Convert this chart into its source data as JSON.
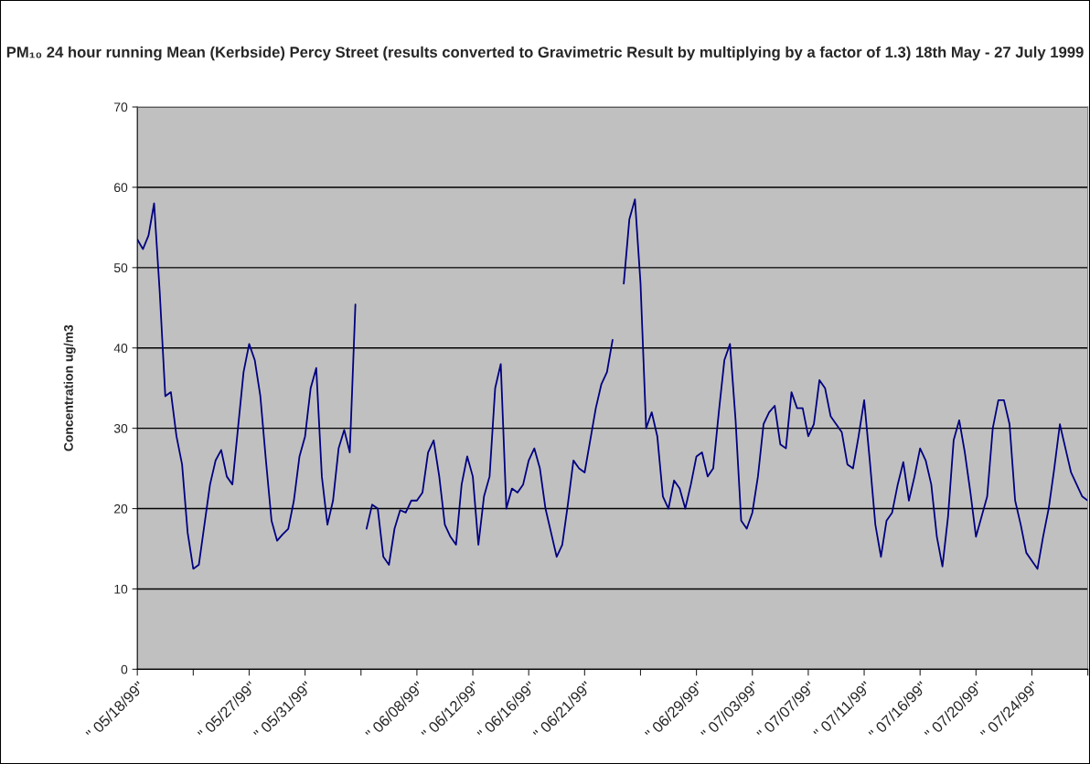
{
  "chart_data": {
    "type": "line",
    "title": "PM₁₀ 24 hour running Mean (Kerbside) Percy Street (results converted to Gravimetric Result by multiplying by a factor of 1.3) 18th May - 27 July 1999",
    "ylabel": "Concentration ug/m3",
    "categories": [
      "\" 05/18/99\"",
      null,
      null,
      null,
      null,
      null,
      null,
      null,
      null,
      null,
      null,
      null,
      null,
      null,
      null,
      null,
      null,
      null,
      null,
      null,
      "\" 05/27/99\"",
      null,
      null,
      null,
      null,
      null,
      null,
      null,
      null,
      null,
      "\" 05/31/99\"",
      null,
      null,
      null,
      null,
      null,
      null,
      null,
      null,
      null,
      null,
      null,
      null,
      null,
      null,
      null,
      null,
      null,
      null,
      null,
      "\" 06/08/99\"",
      null,
      null,
      null,
      null,
      null,
      null,
      null,
      null,
      null,
      "\" 06/12/99\"",
      null,
      null,
      null,
      null,
      null,
      null,
      null,
      null,
      null,
      "\" 06/16/99\"",
      null,
      null,
      null,
      null,
      null,
      null,
      null,
      null,
      null,
      "\" 06/21/99\"",
      null,
      null,
      null,
      null,
      null,
      null,
      null,
      null,
      null,
      null,
      null,
      null,
      null,
      null,
      null,
      null,
      null,
      null,
      null,
      "\" 06/29/99\"",
      null,
      null,
      null,
      null,
      null,
      null,
      null,
      null,
      null,
      "\" 07/03/99\"",
      null,
      null,
      null,
      null,
      null,
      null,
      null,
      null,
      null,
      "\" 07/07/99\"",
      null,
      null,
      null,
      null,
      null,
      null,
      null,
      null,
      null,
      "\" 07/11/99\"",
      null,
      null,
      null,
      null,
      null,
      null,
      null,
      null,
      null,
      "\" 07/16/99\"",
      null,
      null,
      null,
      null,
      null,
      null,
      null,
      null,
      null,
      "\" 07/20/99\"",
      null,
      null,
      null,
      null,
      null,
      null,
      null,
      null,
      null,
      "\" 07/24/99\"",
      null,
      null,
      null,
      null,
      null,
      null,
      null,
      null,
      null,
      null
    ],
    "series": [
      {
        "color": "#000080",
        "values": [
          53.5,
          52.3,
          54,
          58,
          47,
          34,
          34.5,
          29,
          25.5,
          17,
          12.5,
          13,
          18,
          23,
          26,
          27.3,
          24,
          23,
          30,
          37,
          40.5,
          38.5,
          34,
          26,
          18.5,
          16,
          16.8,
          17.5,
          21,
          26.5,
          29,
          35,
          37.5,
          24,
          18,
          21,
          27.5,
          29.8,
          27,
          45.4,
          null,
          17.5,
          20.5,
          20,
          14,
          13,
          17.5,
          19.8,
          19.5,
          21,
          21,
          22,
          27,
          28.5,
          24,
          18,
          16.5,
          15.5,
          23,
          26.5,
          24,
          15.5,
          21.5,
          24,
          35,
          38,
          20,
          22.5,
          22,
          23,
          26,
          27.5,
          25,
          20,
          17,
          14,
          15.5,
          20.5,
          26,
          25,
          24.5,
          28.5,
          32.5,
          35.5,
          37,
          41,
          null,
          48,
          56,
          58.5,
          48,
          30,
          32,
          29,
          21.5,
          20,
          23.5,
          22.5,
          20,
          23,
          26.5,
          27,
          24,
          25,
          32,
          38.5,
          40.5,
          31,
          18.5,
          17.5,
          19.5,
          24,
          30.5,
          32,
          32.8,
          28,
          27.5,
          34.5,
          32.5,
          32.5,
          29,
          30.5,
          36,
          35,
          31.5,
          30.5,
          29.5,
          25.5,
          25,
          29,
          33.5,
          26,
          18,
          14,
          18.5,
          19.5,
          23,
          25.8,
          21,
          24,
          27.5,
          26,
          23,
          16.5,
          12.8,
          19,
          28.5,
          31,
          27,
          22,
          16.5,
          19,
          21.5,
          30,
          33.5,
          33.5,
          30.5,
          21,
          18,
          14.5,
          13.5,
          12.5,
          16.5,
          20,
          25,
          30.5,
          27.5,
          24.5,
          23,
          21.5,
          21
        ]
      }
    ],
    "ylim": [
      0,
      70
    ],
    "yticks": [
      0,
      10,
      20,
      30,
      40,
      50,
      60,
      70
    ],
    "grid": "y",
    "legend": false
  }
}
